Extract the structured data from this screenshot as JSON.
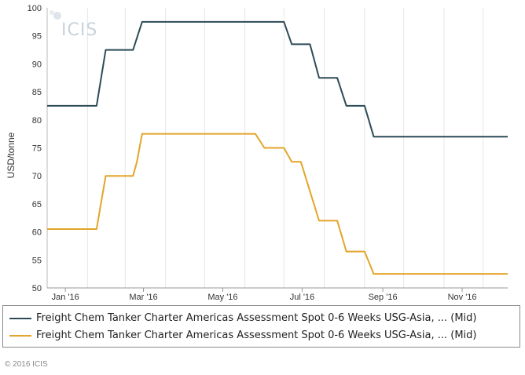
{
  "chart_data": {
    "type": "line",
    "ylabel": "USD/tonne",
    "xlabel": "",
    "ylim": [
      50,
      100
    ],
    "yticks": [
      50,
      55,
      60,
      65,
      70,
      75,
      80,
      85,
      90,
      95,
      100
    ],
    "x_range": [
      "2016-01-01",
      "2016-12-20"
    ],
    "xticks": [
      {
        "date": "2016-01-15",
        "label": "Jan '16"
      },
      {
        "date": "2016-03-15",
        "label": "Mar '16"
      },
      {
        "date": "2016-05-15",
        "label": "May '16"
      },
      {
        "date": "2016-07-15",
        "label": "Jul '16"
      },
      {
        "date": "2016-09-15",
        "label": "Sep '16"
      },
      {
        "date": "2016-11-15",
        "label": "Nov '16"
      }
    ],
    "grid": "vertical",
    "legend_position": "bottom",
    "series": [
      {
        "name": "Freight Chem Tanker Charter Americas Assessment Spot 0-6 Weeks USG-Asia, ... (Mid)",
        "color": "#2c4a57",
        "points": [
          [
            "2016-01-01",
            82.5
          ],
          [
            "2016-02-08",
            82.5
          ],
          [
            "2016-02-15",
            92.5
          ],
          [
            "2016-03-07",
            92.5
          ],
          [
            "2016-03-14",
            97.5
          ],
          [
            "2016-07-01",
            97.5
          ],
          [
            "2016-07-07",
            93.5
          ],
          [
            "2016-07-21",
            93.5
          ],
          [
            "2016-07-28",
            87.5
          ],
          [
            "2016-08-11",
            87.5
          ],
          [
            "2016-08-18",
            82.5
          ],
          [
            "2016-09-01",
            82.5
          ],
          [
            "2016-09-08",
            77.0
          ],
          [
            "2016-12-20",
            77.0
          ]
        ]
      },
      {
        "name": "Freight Chem Tanker Charter Americas Assessment Spot 0-6 Weeks USG-Asia, ... (Mid)",
        "color": "#e3a52a",
        "points": [
          [
            "2016-01-01",
            60.5
          ],
          [
            "2016-02-08",
            60.5
          ],
          [
            "2016-02-15",
            70.0
          ],
          [
            "2016-03-07",
            70.0
          ],
          [
            "2016-03-10",
            72.5
          ],
          [
            "2016-03-14",
            77.5
          ],
          [
            "2016-06-09",
            77.5
          ],
          [
            "2016-06-16",
            75.0
          ],
          [
            "2016-07-01",
            75.0
          ],
          [
            "2016-07-07",
            72.5
          ],
          [
            "2016-07-14",
            72.5
          ],
          [
            "2016-07-28",
            62.0
          ],
          [
            "2016-08-11",
            62.0
          ],
          [
            "2016-08-18",
            56.5
          ],
          [
            "2016-09-01",
            56.5
          ],
          [
            "2016-09-08",
            52.5
          ],
          [
            "2016-12-20",
            52.5
          ]
        ]
      }
    ]
  },
  "logo": {
    "text": "ICIS"
  },
  "legend": {
    "items": [
      {
        "label": "Freight Chem Tanker Charter Americas Assessment Spot 0-6 Weeks USG-Asia, ... (Mid)",
        "color": "#2c4a57"
      },
      {
        "label": "Freight Chem Tanker Charter Americas Assessment Spot 0-6 Weeks USG-Asia, ... (Mid)",
        "color": "#e3a52a"
      }
    ]
  },
  "footer": {
    "copyright": "© 2016 ICIS"
  }
}
